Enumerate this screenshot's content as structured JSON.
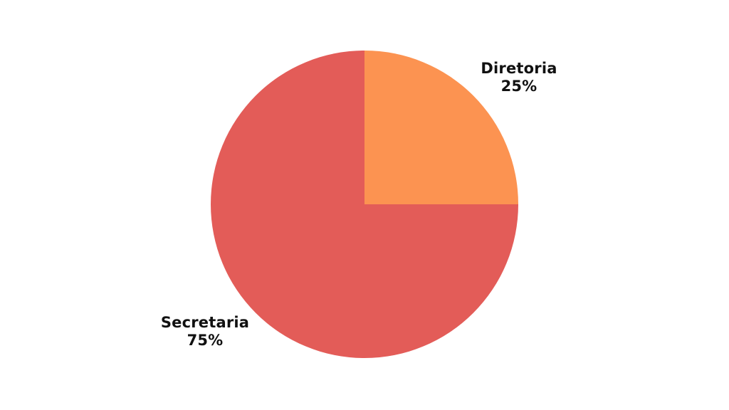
{
  "chart_data": {
    "type": "pie",
    "title": "",
    "categories": [
      "Diretoria",
      "Secretaria"
    ],
    "values": [
      25,
      75
    ],
    "slices": [
      {
        "label": "Diretoria",
        "value": 25,
        "percent_label": "25%",
        "color": "#FC9351"
      },
      {
        "label": "Secretaria",
        "value": 75,
        "percent_label": "75%",
        "color": "#E35C58"
      }
    ],
    "start_angle_deg": 0,
    "direction": "clockwise",
    "legend_position": "outside-labels",
    "background": "#FFFFFF",
    "label_color": "#111111"
  }
}
